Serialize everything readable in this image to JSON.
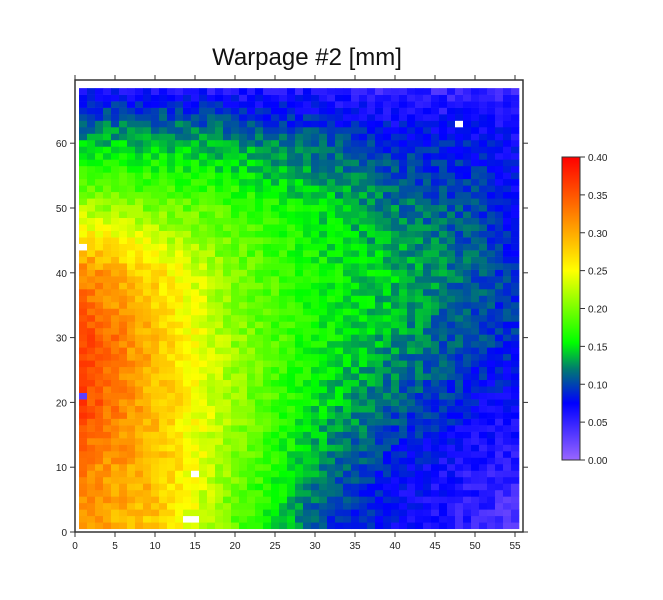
{
  "chart_data": {
    "type": "heatmap",
    "title": "Warpage #2 [mm]",
    "xlabel": "",
    "ylabel": "",
    "xlim": [
      0,
      56
    ],
    "ylim": [
      0,
      69
    ],
    "x_ticks": [
      "0",
      "5",
      "10",
      "15",
      "20",
      "25",
      "30",
      "35",
      "40",
      "45",
      "50",
      "55"
    ],
    "y_ticks": [
      "0",
      "10",
      "20",
      "30",
      "40",
      "50",
      "60"
    ],
    "grid_cells": {
      "x_range": [
        1,
        55
      ],
      "y_range": [
        1,
        68
      ]
    },
    "coarse_grid_note_x": [
      0,
      10,
      20,
      30,
      40,
      50,
      55
    ],
    "coarse_grid_note_y": [
      0,
      10,
      20,
      30,
      40,
      50,
      60,
      68
    ],
    "values_approx": [
      [
        0.31,
        0.28,
        0.19,
        0.1,
        0.07,
        0.05,
        0.03
      ],
      [
        0.33,
        0.29,
        0.2,
        0.13,
        0.08,
        0.06,
        0.05
      ],
      [
        0.37,
        0.29,
        0.21,
        0.15,
        0.11,
        0.08,
        0.07
      ],
      [
        0.37,
        0.29,
        0.21,
        0.16,
        0.13,
        0.1,
        0.09
      ],
      [
        0.33,
        0.27,
        0.2,
        0.16,
        0.14,
        0.11,
        0.09
      ],
      [
        0.22,
        0.2,
        0.18,
        0.15,
        0.12,
        0.1,
        0.08
      ],
      [
        0.14,
        0.14,
        0.13,
        0.11,
        0.09,
        0.08,
        0.07
      ],
      [
        0.07,
        0.07,
        0.06,
        0.06,
        0.05,
        0.05,
        0.05
      ]
    ],
    "missing_cells": [
      [
        1,
        44
      ],
      [
        15,
        9
      ],
      [
        14,
        2
      ],
      [
        15,
        2
      ],
      [
        48,
        63
      ]
    ],
    "colorbar": {
      "range": [
        0,
        0.4
      ],
      "ticks": [
        "0.00",
        "0.05",
        "0.10",
        "0.15",
        "0.20",
        "0.25",
        "0.30",
        "0.35",
        "0.40"
      ],
      "stops": [
        {
          "v": 0.0,
          "color": "#9966ff"
        },
        {
          "v": 0.075,
          "color": "#0000ff"
        },
        {
          "v": 0.12,
          "color": "#007a70"
        },
        {
          "v": 0.155,
          "color": "#00ff00"
        },
        {
          "v": 0.25,
          "color": "#ffff00"
        },
        {
          "v": 0.3,
          "color": "#ffaa00"
        },
        {
          "v": 0.4,
          "color": "#ff0000"
        }
      ]
    },
    "legend_placement": "right"
  }
}
